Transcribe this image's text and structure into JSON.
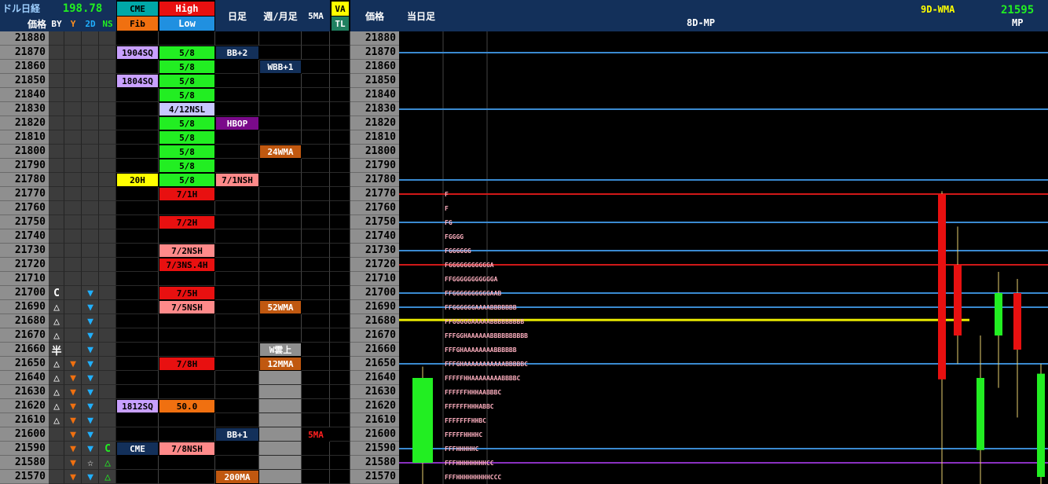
{
  "header": {
    "title": "ドル日経",
    "price_label": "価格",
    "nikkei_value": "198.78",
    "cols": {
      "by": "BY",
      "y": "Y",
      "d2": "2D",
      "ns": "NS"
    },
    "cme": "CME",
    "fib": "Fib",
    "high": "High",
    "low": "Low",
    "daily": "日足",
    "weekly_monthly": "週/月足",
    "ma5": "5MA",
    "va": "VA",
    "tl": "TL",
    "price_label2": "価格",
    "today": "当日足",
    "wma": "9D-WMA",
    "mp_title": "8D-MP",
    "mp_value": "21595",
    "mp_label": "MP"
  },
  "colors": {
    "header_bg": "#13305a",
    "price_bg": "#8f8f8f",
    "cell_grey": "#3c3c3c",
    "green_cell": "#22ee22",
    "red_cell": "#e81010",
    "pink_cell": "#ff8a8a",
    "lavender": "#c8a0ff",
    "navy": "#13305a",
    "purple": "#7a0a8a",
    "orange": "#c05810",
    "yellow": "#ffff00",
    "line_blue": "#3a8ad0",
    "line_red": "#d01818",
    "line_yellow": "#e8e800",
    "line_purple": "#8a30c0",
    "candle_green": "#22ee22",
    "candle_red": "#e81010",
    "orange_triangle": "#f07010",
    "cyan_triangle": "#20b0ff"
  },
  "rows": [
    {
      "price": "21880"
    },
    {
      "price": "21870"
    },
    {
      "price": "21860"
    },
    {
      "price": "21850"
    },
    {
      "price": "21840"
    },
    {
      "price": "21830"
    },
    {
      "price": "21820"
    },
    {
      "price": "21810"
    },
    {
      "price": "21800"
    },
    {
      "price": "21790"
    },
    {
      "price": "21780"
    },
    {
      "price": "21770"
    },
    {
      "price": "21760"
    },
    {
      "price": "21750"
    },
    {
      "price": "21740"
    },
    {
      "price": "21730"
    },
    {
      "price": "21720"
    },
    {
      "price": "21710"
    },
    {
      "price": "21700"
    },
    {
      "price": "21690"
    },
    {
      "price": "21680"
    },
    {
      "price": "21670"
    },
    {
      "price": "21660"
    },
    {
      "price": "21650"
    },
    {
      "price": "21640"
    },
    {
      "price": "21630"
    },
    {
      "price": "21620"
    },
    {
      "price": "21610"
    },
    {
      "price": "21600"
    },
    {
      "price": "21590"
    },
    {
      "price": "21580"
    },
    {
      "price": "21570"
    }
  ],
  "by_col": [
    {
      "row": 18,
      "text": "C"
    },
    {
      "row": 19,
      "text": "△"
    },
    {
      "row": 20,
      "text": "△"
    },
    {
      "row": 21,
      "text": "△"
    },
    {
      "row": 22,
      "text": "半"
    },
    {
      "row": 23,
      "text": "△"
    },
    {
      "row": 24,
      "text": "△"
    },
    {
      "row": 25,
      "text": "△"
    },
    {
      "row": 26,
      "text": "△"
    },
    {
      "row": 27,
      "text": "△"
    }
  ],
  "y_col": [
    {
      "row": 23,
      "text": "▼"
    },
    {
      "row": 24,
      "text": "▼"
    },
    {
      "row": 25,
      "text": "▼"
    },
    {
      "row": 26,
      "text": "▼"
    },
    {
      "row": 27,
      "text": "▼"
    },
    {
      "row": 28,
      "text": "▼"
    },
    {
      "row": 29,
      "text": "▼"
    },
    {
      "row": 30,
      "text": "▼"
    },
    {
      "row": 31,
      "text": "▼"
    }
  ],
  "d2_col": [
    {
      "row": 18,
      "text": "▼"
    },
    {
      "row": 19,
      "text": "▼"
    },
    {
      "row": 20,
      "text": "▼"
    },
    {
      "row": 21,
      "text": "▼"
    },
    {
      "row": 22,
      "text": "▼"
    },
    {
      "row": 23,
      "text": "▼"
    },
    {
      "row": 24,
      "text": "▼"
    },
    {
      "row": 25,
      "text": "▼"
    },
    {
      "row": 26,
      "text": "▼"
    },
    {
      "row": 27,
      "text": "▼"
    },
    {
      "row": 28,
      "text": "▼"
    },
    {
      "row": 29,
      "text": "▼"
    },
    {
      "row": 30,
      "text": "☆"
    },
    {
      "row": 31,
      "text": "▼"
    }
  ],
  "ns_col": [
    {
      "row": 29,
      "text": "C"
    },
    {
      "row": 30,
      "text": "△"
    },
    {
      "row": 31,
      "text": "△"
    }
  ],
  "cme_col": [
    {
      "row": 1,
      "text": "1904SQ",
      "bg": "#c8a0ff",
      "fg": "#000"
    },
    {
      "row": 3,
      "text": "1804SQ",
      "bg": "#c8a0ff",
      "fg": "#000"
    },
    {
      "row": 10,
      "text": "20H",
      "bg": "#ffff00",
      "fg": "#000"
    },
    {
      "row": 26,
      "text": "1812SQ",
      "bg": "#c8a0ff",
      "fg": "#000"
    },
    {
      "row": 29,
      "text": "CME",
      "bg": "#13305a",
      "fg": "#fff"
    }
  ],
  "hl_col": [
    {
      "row": 1,
      "text": "5/8",
      "bg": "#22ee22",
      "fg": "#000"
    },
    {
      "row": 2,
      "text": "5/8",
      "bg": "#22ee22",
      "fg": "#000"
    },
    {
      "row": 3,
      "text": "5/8",
      "bg": "#22ee22",
      "fg": "#000"
    },
    {
      "row": 4,
      "text": "5/8",
      "bg": "#22ee22",
      "fg": "#000"
    },
    {
      "row": 5,
      "text": "4/12NSL",
      "bg": "#c8c8ff",
      "fg": "#000"
    },
    {
      "row": 6,
      "text": "5/8",
      "bg": "#22ee22",
      "fg": "#000"
    },
    {
      "row": 7,
      "text": "5/8",
      "bg": "#22ee22",
      "fg": "#000"
    },
    {
      "row": 8,
      "text": "5/8",
      "bg": "#22ee22",
      "fg": "#000"
    },
    {
      "row": 9,
      "text": "5/8",
      "bg": "#22ee22",
      "fg": "#000"
    },
    {
      "row": 10,
      "text": "5/8",
      "bg": "#22ee22",
      "fg": "#000"
    },
    {
      "row": 11,
      "text": "7/1H",
      "bg": "#e81010",
      "fg": "#000"
    },
    {
      "row": 13,
      "text": "7/2H",
      "bg": "#e81010",
      "fg": "#000"
    },
    {
      "row": 15,
      "text": "7/2NSH",
      "bg": "#ff8a8a",
      "fg": "#000"
    },
    {
      "row": 16,
      "text": "7/3NS.4H",
      "bg": "#e81010",
      "fg": "#000"
    },
    {
      "row": 18,
      "text": "7/5H",
      "bg": "#e81010",
      "fg": "#000"
    },
    {
      "row": 19,
      "text": "7/5NSH",
      "bg": "#ff8a8a",
      "fg": "#000"
    },
    {
      "row": 23,
      "text": "7/8H",
      "bg": "#e81010",
      "fg": "#000"
    },
    {
      "row": 26,
      "text": "50.0",
      "bg": "#f07010",
      "fg": "#000"
    },
    {
      "row": 29,
      "text": "7/8NSH",
      "bg": "#ff8a8a",
      "fg": "#000"
    }
  ],
  "daily_col": [
    {
      "row": 1,
      "text": "BB+2",
      "bg": "#13305a",
      "fg": "#fff"
    },
    {
      "row": 6,
      "text": "HBOP",
      "bg": "#7a0a8a",
      "fg": "#fff"
    },
    {
      "row": 10,
      "text": "7/1NSH",
      "bg": "#ff8a8a",
      "fg": "#000"
    },
    {
      "row": 28,
      "text": "BB+1",
      "bg": "#13305a",
      "fg": "#fff"
    },
    {
      "row": 31,
      "text": "200MA",
      "bg": "#c05810",
      "fg": "#fff"
    }
  ],
  "wm_col": [
    {
      "row": 2,
      "text": "WBB+1",
      "bg": "#13305a",
      "fg": "#fff"
    },
    {
      "row": 8,
      "text": "24WMA",
      "bg": "#c05810",
      "fg": "#fff"
    },
    {
      "row": 19,
      "text": "52WMA",
      "bg": "#c05810",
      "fg": "#fff"
    },
    {
      "row": 22,
      "text": "W雲上",
      "bg": "#8f8f8f",
      "fg": "#fff"
    },
    {
      "row": 23,
      "text": "12MMA",
      "bg": "#c05810",
      "fg": "#fff"
    }
  ],
  "ma5_col": [
    {
      "row": 28,
      "text": "5MA",
      "bg": "#000",
      "fg": "#ff2020"
    }
  ],
  "chart_data": {
    "type": "line",
    "title": "8D-MP",
    "ylim": [
      21565,
      21885
    ],
    "hlines": [
      {
        "y": 21870,
        "color": "#3a8ad0"
      },
      {
        "y": 21830,
        "color": "#3a8ad0"
      },
      {
        "y": 21780,
        "color": "#3a8ad0"
      },
      {
        "y": 21770,
        "color": "#d01818"
      },
      {
        "y": 21750,
        "color": "#3a8ad0"
      },
      {
        "y": 21730,
        "color": "#3a8ad0"
      },
      {
        "y": 21720,
        "color": "#d01818"
      },
      {
        "y": 21700,
        "color": "#3a8ad0"
      },
      {
        "y": 21690,
        "color": "#3a8ad0"
      },
      {
        "y": 21650,
        "color": "#3a8ad0"
      },
      {
        "y": 21590,
        "color": "#3a8ad0"
      },
      {
        "y": 21580,
        "color": "#8a30c0"
      }
    ],
    "mp_line": {
      "y": 21681,
      "color": "#e8e800"
    },
    "profile": [
      {
        "y": 21770,
        "text": "F"
      },
      {
        "y": 21760,
        "text": "F"
      },
      {
        "y": 21750,
        "text": "FG"
      },
      {
        "y": 21740,
        "text": "FGGGG"
      },
      {
        "y": 21730,
        "text": "FGGGGGG"
      },
      {
        "y": 21720,
        "text": "FGGGGGGGGGGGA"
      },
      {
        "y": 21710,
        "text": "FFGGGGGGGGGGGA"
      },
      {
        "y": 21700,
        "text": "FFGGGGGGGGGGAAB"
      },
      {
        "y": 21690,
        "text": "FFGGGGGGAAAABBBBBBB"
      },
      {
        "y": 21680,
        "text": "FFGGGGGAAAAABBBBBBBBB"
      },
      {
        "y": 21670,
        "text": "FFFGGHAAAAAABBBBBBBBBB"
      },
      {
        "y": 21660,
        "text": "FFFGHAAAAAAAABBBBBB"
      },
      {
        "y": 21650,
        "text": "FFFGHAAAAAAAAAAABBBBBC"
      },
      {
        "y": 21640,
        "text": "FFFFFHHAAAAAAAABBBBC"
      },
      {
        "y": 21630,
        "text": "FFFFFFHHHAABBBC"
      },
      {
        "y": 21620,
        "text": "FFFFFFHHHABBC"
      },
      {
        "y": 21610,
        "text": "FFFFFFFHHBC"
      },
      {
        "y": 21600,
        "text": "FFFFFHHHHC"
      },
      {
        "y": 21590,
        "text": "FFFHHHHHC"
      },
      {
        "y": 21580,
        "text": "FFFHHHHHHHHCC"
      },
      {
        "y": 21570,
        "text": "FFFHHHHHHHHHCCC"
      }
    ],
    "today_candle": {
      "open": 21580,
      "close": 21640,
      "high": 21648,
      "low": 21555,
      "color": "#22ee22"
    },
    "candles": [
      {
        "open": 21770,
        "close": 21639,
        "high": 21772,
        "low": 21560,
        "color": "#e81010"
      },
      {
        "open": 21720,
        "close": 21670,
        "high": 21747,
        "low": 21650,
        "color": "#e81010"
      },
      {
        "open": 21589,
        "close": 21640,
        "high": 21670,
        "low": 21560,
        "color": "#22ee22"
      },
      {
        "open": 21670,
        "close": 21700,
        "high": 21715,
        "low": 21633,
        "color": "#22ee22"
      },
      {
        "open": 21700,
        "close": 21660,
        "high": 21710,
        "low": 21612,
        "color": "#e81010"
      },
      {
        "open": 21570,
        "close": 21643,
        "high": 21650,
        "low": 21560,
        "color": "#22ee22"
      }
    ]
  }
}
